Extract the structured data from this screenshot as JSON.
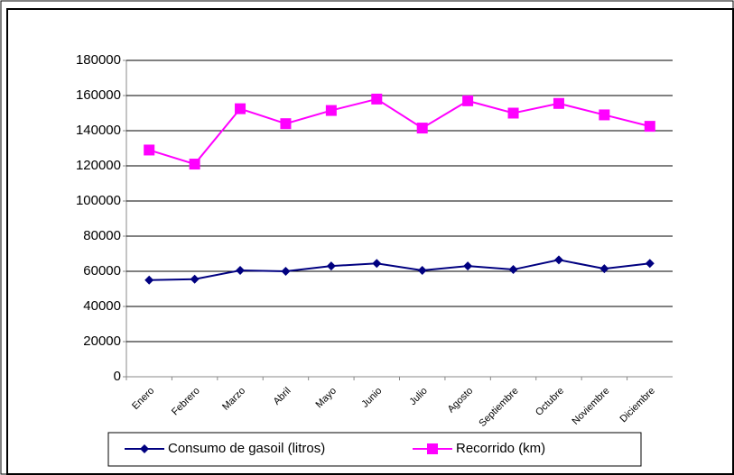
{
  "chart_data": {
    "type": "line",
    "categories": [
      "Enero",
      "Febrero",
      "Marzo",
      "Abril",
      "Mayo",
      "Junio",
      "Julio",
      "Agosto",
      "Septiembre",
      "Octubre",
      "Noviembre",
      "Diciembre"
    ],
    "series": [
      {
        "name": "Consumo de gasoil (litros)",
        "color": "#000080",
        "marker": "diamond",
        "values": [
          55000,
          55500,
          60500,
          60000,
          63000,
          64500,
          60500,
          63000,
          61000,
          66500,
          61500,
          64500
        ]
      },
      {
        "name": "Recorrido (km)",
        "color": "#ff00ff",
        "marker": "square",
        "values": [
          129000,
          121000,
          152500,
          144000,
          151500,
          158000,
          141500,
          157000,
          150000,
          155500,
          149000,
          142500
        ]
      }
    ],
    "ylim": [
      0,
      180000
    ],
    "yticks": [
      0,
      20000,
      40000,
      60000,
      80000,
      100000,
      120000,
      140000,
      160000,
      180000
    ],
    "grid": true,
    "legend": "bottom"
  }
}
